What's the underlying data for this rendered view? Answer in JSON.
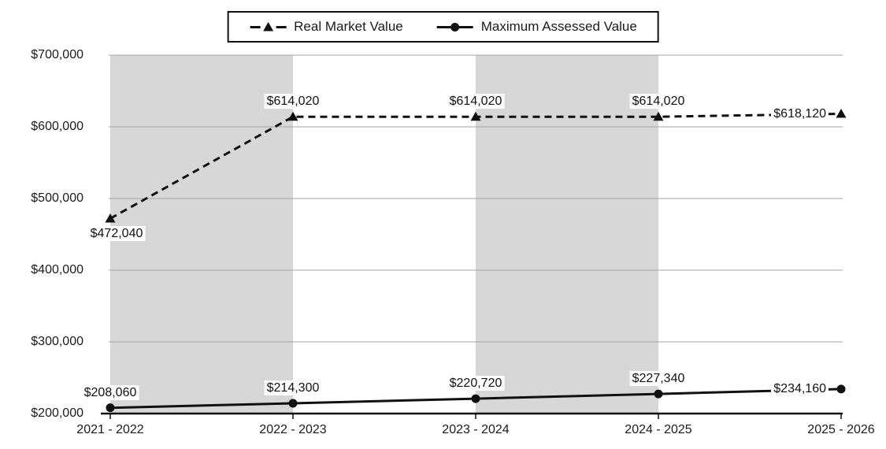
{
  "legend": {
    "items": [
      {
        "label": "Real Market Value"
      },
      {
        "label": "Maximum Assessed Value"
      }
    ]
  },
  "chart_data": {
    "type": "line",
    "title": "",
    "xlabel": "",
    "ylabel": "",
    "categories": [
      "2021 - 2022",
      "2022 - 2023",
      "2023 - 2024",
      "2024 - 2025",
      "2025 - 2026"
    ],
    "series": [
      {
        "name": "Real Market Value",
        "line_style": "dashed",
        "marker": "triangle",
        "values": [
          472040,
          614020,
          614020,
          614020,
          618120
        ],
        "labels": [
          "$472,040",
          "$614,020",
          "$614,020",
          "$614,020",
          "$618,120"
        ],
        "label_positions": [
          "below",
          "above",
          "above",
          "above",
          "left"
        ]
      },
      {
        "name": "Maximum Assessed Value",
        "line_style": "solid",
        "marker": "circle",
        "values": [
          208060,
          214300,
          220720,
          227340,
          234160
        ],
        "labels": [
          "$208,060",
          "$214,300",
          "$220,720",
          "$227,340",
          "$234,160"
        ],
        "label_positions": [
          "above",
          "above",
          "above",
          "above",
          "left"
        ]
      }
    ],
    "ylim": [
      200000,
      700000
    ],
    "y_ticks": [
      {
        "value": 700000,
        "label": "$700,000"
      },
      {
        "value": 600000,
        "label": "$600,000"
      },
      {
        "value": 500000,
        "label": "$500,000"
      },
      {
        "value": 400000,
        "label": "$400,000"
      },
      {
        "value": 300000,
        "label": "$300,000"
      },
      {
        "value": 200000,
        "label": "$200,000"
      }
    ],
    "grid": true,
    "legend_position": "top-center",
    "shaded_band_category_spans": [
      [
        0,
        1
      ],
      [
        2,
        3
      ]
    ],
    "colors": {
      "line": "#111111",
      "gridline": "#a6a6a6",
      "band": "#d7d7d7",
      "axis": "#111111",
      "label_background": "#ffffff",
      "text": "#1a1a1a"
    }
  }
}
